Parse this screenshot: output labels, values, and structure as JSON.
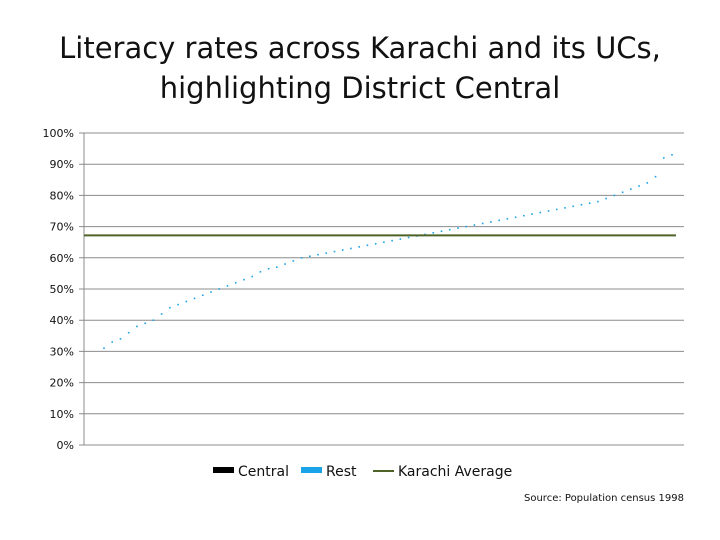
{
  "chart_data": {
    "type": "scatter",
    "title_lines": [
      "Literacy rates across Karachi and its UCs,",
      "highlighting District Central"
    ],
    "xlabel": "",
    "ylabel": "",
    "ylim": [
      0,
      1
    ],
    "y_ticks": [
      "0%",
      "10%",
      "20%",
      "30%",
      "40%",
      "50%",
      "60%",
      "70%",
      "80%",
      "90%",
      "100%"
    ],
    "grid": true,
    "legend_position": "bottom",
    "legend": [
      {
        "name": "Central",
        "color": "#000000",
        "kind": "box"
      },
      {
        "name": "Rest",
        "color": "#1aa3e8",
        "kind": "box"
      },
      {
        "name": "Karachi Average",
        "color": "#4f6228",
        "kind": "line"
      }
    ],
    "average_line": {
      "name": "Karachi Average",
      "value": 0.672,
      "color": "#4f6228"
    },
    "series": [
      {
        "name": "Rest",
        "color": "#1aa3e8",
        "values": [
          0.31,
          0.33,
          0.34,
          0.36,
          0.38,
          0.39,
          0.4,
          0.42,
          0.44,
          0.45,
          0.46,
          0.47,
          0.48,
          0.49,
          0.5,
          0.51,
          0.52,
          0.53,
          0.54,
          0.555,
          0.565,
          0.57,
          0.58,
          0.59,
          0.6,
          0.605,
          0.61,
          0.615,
          0.62,
          0.625,
          0.63,
          0.635,
          0.64,
          0.645,
          0.65,
          0.655,
          0.66,
          0.665,
          0.67,
          0.675,
          0.68,
          0.685,
          0.69,
          0.695,
          0.7,
          0.705,
          0.71,
          0.715,
          0.72,
          0.725,
          0.73,
          0.735,
          0.74,
          0.745,
          0.75,
          0.755,
          0.76,
          0.765,
          0.77,
          0.775,
          0.78,
          0.79,
          0.8,
          0.81,
          0.82,
          0.83,
          0.84,
          0.86,
          0.92,
          0.93
        ]
      }
    ]
  },
  "source_text": "Source: Population census 1998"
}
